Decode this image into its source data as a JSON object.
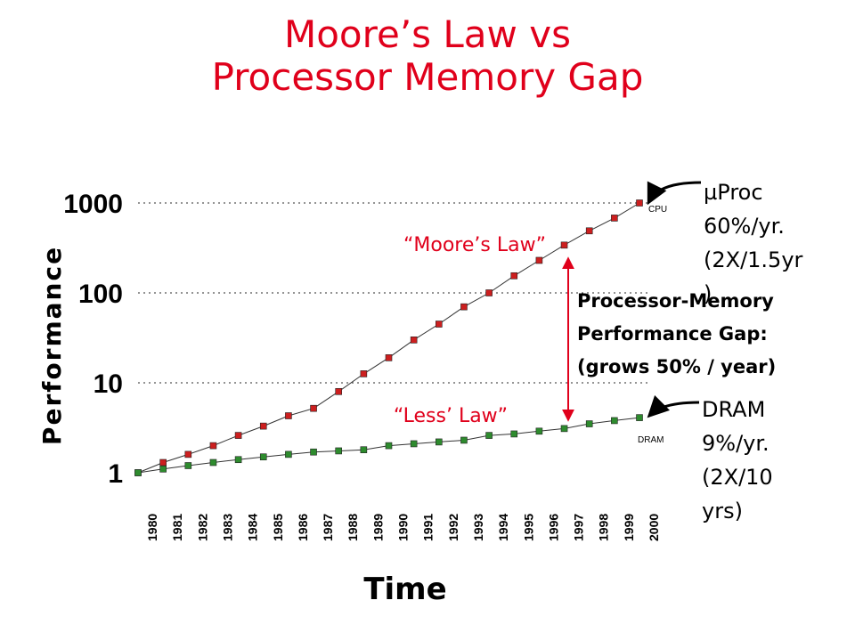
{
  "title": {
    "line1": "Moore’s Law vs",
    "line2": "Processor Memory Gap"
  },
  "colors": {
    "title": "#e0001b",
    "cpu_marker": "#cc1f1f",
    "dram_marker": "#2e8b2e",
    "gap_arrow": "#e0001b",
    "grid": "#555555"
  },
  "annotations": {
    "moores_law": "“Moore’s Law”",
    "less_law": "“Less’ Law”",
    "cpu_tag": "CPU",
    "dram_tag": "DRAM",
    "uproc": [
      "µProc",
      "60%/yr.",
      "(2X/1.5yr",
      ")"
    ],
    "dram": [
      "DRAM",
      "9%/yr.",
      "(2X/10",
      "yrs)"
    ],
    "gap": [
      "Processor-Memory",
      "Performance Gap:",
      "(grows 50% / year)"
    ]
  },
  "chart_data": {
    "type": "line",
    "xlabel": "Time",
    "ylabel": "Performance",
    "y_scale": "log",
    "ylim": [
      1,
      1000
    ],
    "y_ticks": [
      "1",
      "10",
      "100",
      "1000"
    ],
    "y_tick_values": [
      1,
      10,
      100,
      1000
    ],
    "grid": "horizontal dotted",
    "categories": [
      "1980",
      "1981",
      "1982",
      "1983",
      "1984",
      "1985",
      "1986",
      "1987",
      "1988",
      "1989",
      "1990",
      "1991",
      "1992",
      "1993",
      "1994",
      "1995",
      "1996",
      "1997",
      "1998",
      "1999",
      "2000"
    ],
    "series": [
      {
        "name": "CPU",
        "values": [
          1,
          1.3,
          1.6,
          2.0,
          2.6,
          3.3,
          4.3,
          5.2,
          8.0,
          12.6,
          19.0,
          30.0,
          45.0,
          70.0,
          100.0,
          155.0,
          230.0,
          340.0,
          490.0,
          680.0,
          1000.0
        ]
      },
      {
        "name": "DRAM",
        "values": [
          1,
          1.1,
          1.2,
          1.3,
          1.4,
          1.5,
          1.6,
          1.7,
          1.75,
          1.8,
          2.0,
          2.1,
          2.2,
          2.3,
          2.6,
          2.7,
          2.9,
          3.1,
          3.5,
          3.8,
          4.1
        ]
      }
    ]
  }
}
